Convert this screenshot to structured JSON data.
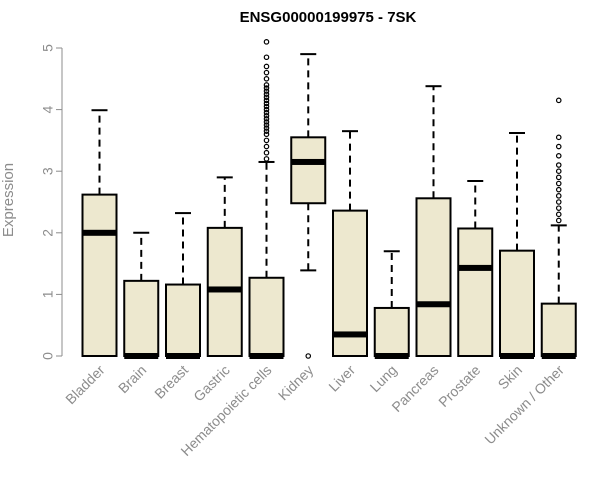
{
  "chart_data": {
    "type": "boxplot",
    "title": "ENSG00000199975 - 7SK",
    "ylabel": "Expression",
    "xlabel": "",
    "ylim": [
      0,
      5
    ],
    "yticks": [
      0,
      1,
      2,
      3,
      4,
      5
    ],
    "box_fill": "#ede8cf",
    "categories": [
      "Bladder",
      "Brain",
      "Breast",
      "Gastric",
      "Hematopoietic cells",
      "Kidney",
      "Liver",
      "Lung",
      "Pancreas",
      "Prostate",
      "Skin",
      "Unknown / Other"
    ],
    "boxes": [
      {
        "category": "Bladder",
        "whisker_low": 0,
        "q1": 0,
        "median": 2.0,
        "q3": 2.62,
        "whisker_high": 3.99,
        "outliers": []
      },
      {
        "category": "Brain",
        "whisker_low": 0,
        "q1": 0,
        "median": 0,
        "q3": 1.22,
        "whisker_high": 2.0,
        "outliers": []
      },
      {
        "category": "Breast",
        "whisker_low": 0,
        "q1": 0,
        "median": 0,
        "q3": 1.16,
        "whisker_high": 2.32,
        "outliers": []
      },
      {
        "category": "Gastric",
        "whisker_low": 0,
        "q1": 0,
        "median": 1.08,
        "q3": 2.08,
        "whisker_high": 2.9,
        "outliers": []
      },
      {
        "category": "Hematopoietic cells",
        "whisker_low": 0,
        "q1": 0,
        "median": 0,
        "q3": 1.27,
        "whisker_high": 3.15,
        "outliers": [
          3.2,
          3.3,
          3.4,
          3.5,
          3.6,
          3.65,
          3.7,
          3.75,
          3.8,
          3.85,
          3.9,
          3.95,
          4.0,
          4.05,
          4.1,
          4.15,
          4.2,
          4.25,
          4.3,
          4.35,
          4.4,
          4.5,
          4.6,
          4.7,
          4.85,
          5.1
        ]
      },
      {
        "category": "Kidney",
        "whisker_low": 1.39,
        "q1": 2.48,
        "median": 3.15,
        "q3": 3.55,
        "whisker_high": 4.9,
        "outliers": [
          0
        ]
      },
      {
        "category": "Liver",
        "whisker_low": 0,
        "q1": 0,
        "median": 0.35,
        "q3": 2.36,
        "whisker_high": 3.65,
        "outliers": []
      },
      {
        "category": "Lung",
        "whisker_low": 0,
        "q1": 0,
        "median": 0,
        "q3": 0.78,
        "whisker_high": 1.7,
        "outliers": []
      },
      {
        "category": "Pancreas",
        "whisker_low": 0,
        "q1": 0,
        "median": 0.84,
        "q3": 2.56,
        "whisker_high": 4.38,
        "outliers": []
      },
      {
        "category": "Prostate",
        "whisker_low": 0,
        "q1": 0,
        "median": 1.43,
        "q3": 2.07,
        "whisker_high": 2.84,
        "outliers": []
      },
      {
        "category": "Skin",
        "whisker_low": 0,
        "q1": 0,
        "median": 0,
        "q3": 1.71,
        "whisker_high": 3.62,
        "outliers": []
      },
      {
        "category": "Unknown / Other",
        "whisker_low": 0,
        "q1": 0,
        "median": 0,
        "q3": 0.85,
        "whisker_high": 2.12,
        "outliers": [
          2.2,
          2.3,
          2.4,
          2.5,
          2.6,
          2.7,
          2.8,
          2.9,
          3.0,
          3.1,
          3.25,
          3.4,
          3.55,
          4.15
        ]
      }
    ]
  }
}
